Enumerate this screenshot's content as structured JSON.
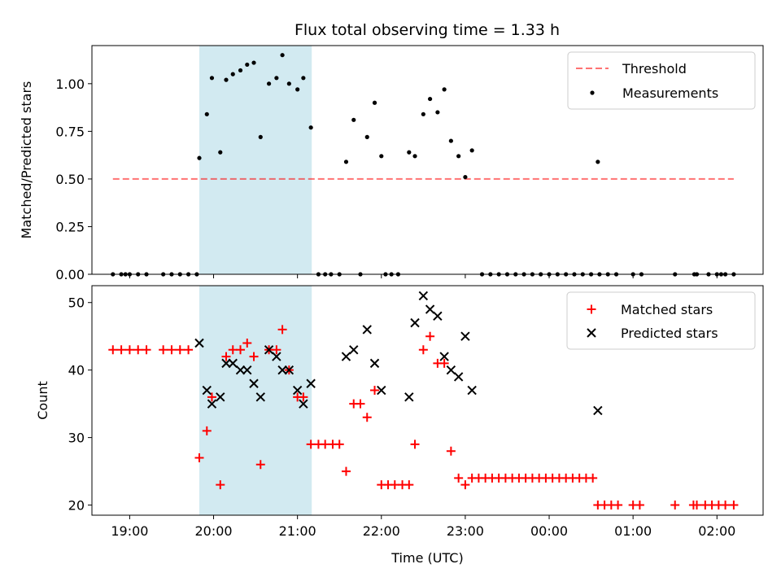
{
  "chart_data": {
    "type": "scatter",
    "title": "Flux total observing time = 1.33 h",
    "xlabel": "Time (UTC)",
    "x_tick_labels": [
      "19:00",
      "20:00",
      "21:00",
      "22:00",
      "23:00",
      "00:00",
      "01:00",
      "02:00"
    ],
    "x_range_hours": [
      18.55,
      26.55
    ],
    "shaded_interval": [
      19.83,
      21.17
    ],
    "colors": {
      "shade": "#add8e6",
      "threshold": "#ff0000",
      "matched": "#ff0000",
      "predicted": "#000000",
      "measure": "#000000"
    },
    "panels": [
      {
        "ylabel": "Matched/Predicted stars",
        "ylim": [
          0,
          1.2
        ],
        "y_tick_labels": [
          "0.00",
          "0.25",
          "0.50",
          "0.75",
          "1.00"
        ],
        "legend_position": "top-right",
        "series": [
          {
            "name": "Threshold",
            "kind": "line",
            "x": [
              18.8,
              26.2
            ],
            "y": [
              0.5,
              0.5
            ]
          },
          {
            "name": "Measurements",
            "kind": "scatter",
            "points": [
              [
                18.8,
                0
              ],
              [
                18.9,
                0
              ],
              [
                18.95,
                0
              ],
              [
                19.0,
                0
              ],
              [
                19.1,
                0
              ],
              [
                19.2,
                0
              ],
              [
                19.4,
                0
              ],
              [
                19.5,
                0
              ],
              [
                19.6,
                0
              ],
              [
                19.7,
                0
              ],
              [
                19.8,
                0
              ],
              [
                19.83,
                0.61
              ],
              [
                19.92,
                0.84
              ],
              [
                19.98,
                1.03
              ],
              [
                20.08,
                0.64
              ],
              [
                20.15,
                1.02
              ],
              [
                20.23,
                1.05
              ],
              [
                20.32,
                1.07
              ],
              [
                20.4,
                1.1
              ],
              [
                20.48,
                1.11
              ],
              [
                20.56,
                0.72
              ],
              [
                20.66,
                1.0
              ],
              [
                20.75,
                1.03
              ],
              [
                20.82,
                1.15
              ],
              [
                20.9,
                1.0
              ],
              [
                21.0,
                0.97
              ],
              [
                21.07,
                1.03
              ],
              [
                21.16,
                0.77
              ],
              [
                21.25,
                0
              ],
              [
                21.33,
                0
              ],
              [
                21.4,
                0
              ],
              [
                21.5,
                0
              ],
              [
                21.75,
                0
              ],
              [
                22.05,
                0
              ],
              [
                22.12,
                0
              ],
              [
                22.2,
                0
              ],
              [
                21.58,
                0.59
              ],
              [
                21.67,
                0.81
              ],
              [
                21.83,
                0.72
              ],
              [
                21.92,
                0.9
              ],
              [
                22.0,
                0.62
              ],
              [
                22.33,
                0.64
              ],
              [
                22.4,
                0.62
              ],
              [
                22.5,
                0.84
              ],
              [
                22.58,
                0.92
              ],
              [
                22.67,
                0.85
              ],
              [
                22.75,
                0.97
              ],
              [
                22.83,
                0.7
              ],
              [
                22.92,
                0.62
              ],
              [
                23.0,
                0.51
              ],
              [
                23.08,
                0.65
              ],
              [
                23.2,
                0
              ],
              [
                23.3,
                0
              ],
              [
                23.4,
                0
              ],
              [
                23.5,
                0
              ],
              [
                23.6,
                0
              ],
              [
                23.7,
                0
              ],
              [
                23.8,
                0
              ],
              [
                23.9,
                0
              ],
              [
                24.0,
                0
              ],
              [
                24.1,
                0
              ],
              [
                24.2,
                0
              ],
              [
                24.3,
                0
              ],
              [
                24.4,
                0
              ],
              [
                24.5,
                0
              ],
              [
                24.6,
                0
              ],
              [
                24.7,
                0
              ],
              [
                24.8,
                0
              ],
              [
                25.0,
                0
              ],
              [
                25.1,
                0
              ],
              [
                25.5,
                0
              ],
              [
                25.73,
                0
              ],
              [
                25.76,
                0
              ],
              [
                25.9,
                0
              ],
              [
                26.0,
                0
              ],
              [
                26.05,
                0
              ],
              [
                26.1,
                0
              ],
              [
                26.2,
                0
              ],
              [
                24.58,
                0.59
              ]
            ]
          }
        ]
      },
      {
        "ylabel": "Count",
        "ylim": [
          18.5,
          52.5
        ],
        "y_tick_labels": [
          "20",
          "30",
          "40",
          "50"
        ],
        "legend_position": "top-right",
        "series": [
          {
            "name": "Matched stars",
            "kind": "plus",
            "points": [
              [
                18.8,
                43
              ],
              [
                18.9,
                43
              ],
              [
                19.0,
                43
              ],
              [
                19.1,
                43
              ],
              [
                19.2,
                43
              ],
              [
                19.4,
                43
              ],
              [
                19.5,
                43
              ],
              [
                19.6,
                43
              ],
              [
                19.7,
                43
              ],
              [
                19.83,
                27
              ],
              [
                19.92,
                31
              ],
              [
                19.98,
                36
              ],
              [
                20.08,
                23
              ],
              [
                20.15,
                42
              ],
              [
                20.23,
                43
              ],
              [
                20.32,
                43
              ],
              [
                20.4,
                44
              ],
              [
                20.48,
                42
              ],
              [
                20.56,
                26
              ],
              [
                20.66,
                43
              ],
              [
                20.75,
                43
              ],
              [
                20.82,
                46
              ],
              [
                20.9,
                40
              ],
              [
                21.0,
                36
              ],
              [
                21.07,
                36
              ],
              [
                21.16,
                29
              ],
              [
                21.25,
                29
              ],
              [
                21.33,
                29
              ],
              [
                21.42,
                29
              ],
              [
                21.5,
                29
              ],
              [
                21.58,
                25
              ],
              [
                21.67,
                35
              ],
              [
                21.75,
                35
              ],
              [
                21.83,
                33
              ],
              [
                21.92,
                37
              ],
              [
                22.0,
                23
              ],
              [
                22.08,
                23
              ],
              [
                22.16,
                23
              ],
              [
                22.25,
                23
              ],
              [
                22.33,
                23
              ],
              [
                22.4,
                29
              ],
              [
                22.5,
                43
              ],
              [
                22.58,
                45
              ],
              [
                22.67,
                41
              ],
              [
                22.75,
                41
              ],
              [
                22.83,
                28
              ],
              [
                22.92,
                24
              ],
              [
                23.0,
                23
              ],
              [
                23.08,
                24
              ],
              [
                23.16,
                24
              ],
              [
                23.24,
                24
              ],
              [
                23.32,
                24
              ],
              [
                23.4,
                24
              ],
              [
                23.48,
                24
              ],
              [
                23.56,
                24
              ],
              [
                23.64,
                24
              ],
              [
                23.72,
                24
              ],
              [
                23.8,
                24
              ],
              [
                23.88,
                24
              ],
              [
                23.96,
                24
              ],
              [
                24.04,
                24
              ],
              [
                24.12,
                24
              ],
              [
                24.2,
                24
              ],
              [
                24.28,
                24
              ],
              [
                24.36,
                24
              ],
              [
                24.44,
                24
              ],
              [
                24.52,
                24
              ],
              [
                24.58,
                20
              ],
              [
                24.66,
                20
              ],
              [
                24.74,
                20
              ],
              [
                24.82,
                20
              ],
              [
                25.0,
                20
              ],
              [
                25.08,
                20
              ],
              [
                25.5,
                20
              ],
              [
                25.72,
                20
              ],
              [
                25.76,
                20
              ],
              [
                25.86,
                20
              ],
              [
                25.94,
                20
              ],
              [
                26.02,
                20
              ],
              [
                26.1,
                20
              ],
              [
                26.2,
                20
              ]
            ]
          },
          {
            "name": "Predicted stars",
            "kind": "cross",
            "points": [
              [
                19.83,
                44
              ],
              [
                19.92,
                37
              ],
              [
                19.98,
                35
              ],
              [
                20.08,
                36
              ],
              [
                20.15,
                41
              ],
              [
                20.23,
                41
              ],
              [
                20.32,
                40
              ],
              [
                20.4,
                40
              ],
              [
                20.48,
                38
              ],
              [
                20.56,
                36
              ],
              [
                20.66,
                43
              ],
              [
                20.75,
                42
              ],
              [
                20.82,
                40
              ],
              [
                20.9,
                40
              ],
              [
                21.0,
                37
              ],
              [
                21.07,
                35
              ],
              [
                21.16,
                38
              ],
              [
                21.58,
                42
              ],
              [
                21.67,
                43
              ],
              [
                21.83,
                46
              ],
              [
                21.92,
                41
              ],
              [
                22.0,
                37
              ],
              [
                22.33,
                36
              ],
              [
                22.4,
                47
              ],
              [
                22.5,
                51
              ],
              [
                22.58,
                49
              ],
              [
                22.67,
                48
              ],
              [
                22.75,
                42
              ],
              [
                22.83,
                40
              ],
              [
                22.92,
                39
              ],
              [
                23.0,
                45
              ],
              [
                23.08,
                37
              ],
              [
                24.58,
                34
              ]
            ]
          }
        ]
      }
    ]
  }
}
